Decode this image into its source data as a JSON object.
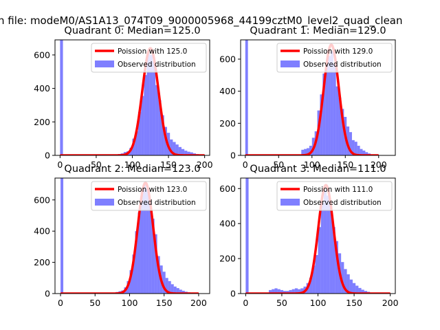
{
  "suptitle": "n file: modeM0/AS1A13_074T09_9000005968_44199cztM0_level2_quad_clean",
  "chart_data": [
    {
      "type": "bar",
      "title": "Quadrant 0: Median=125.0",
      "legend": [
        "Poission with 125.0",
        "Observed distribution"
      ],
      "legend_position": "top-right",
      "mean": 125.0,
      "peak": 640,
      "xlim": [
        -7,
        207
      ],
      "ylim": [
        0,
        690
      ],
      "xticks": [
        0,
        50,
        100,
        150,
        200
      ],
      "yticks": [
        0,
        200,
        400,
        600
      ],
      "series_color": "#0000ff",
      "fit_color": "#ff0000",
      "bins": [
        [
          0,
          4,
          690
        ],
        [
          80,
          4,
          8
        ],
        [
          84,
          4,
          12
        ],
        [
          88,
          4,
          20
        ],
        [
          92,
          4,
          25
        ],
        [
          96,
          4,
          45
        ],
        [
          100,
          4,
          100
        ],
        [
          104,
          4,
          145
        ],
        [
          108,
          4,
          260
        ],
        [
          112,
          4,
          355
        ],
        [
          116,
          4,
          480
        ],
        [
          120,
          4,
          610
        ],
        [
          124,
          4,
          600
        ],
        [
          128,
          4,
          560
        ],
        [
          132,
          4,
          420
        ],
        [
          136,
          4,
          330
        ],
        [
          140,
          4,
          240
        ],
        [
          144,
          4,
          170
        ],
        [
          148,
          4,
          135
        ],
        [
          152,
          4,
          95
        ],
        [
          156,
          4,
          80
        ],
        [
          160,
          4,
          65
        ],
        [
          164,
          4,
          50
        ],
        [
          168,
          4,
          38
        ],
        [
          172,
          4,
          28
        ],
        [
          176,
          4,
          22
        ],
        [
          180,
          4,
          18
        ],
        [
          184,
          4,
          12
        ],
        [
          188,
          4,
          8
        ],
        [
          192,
          4,
          5
        ],
        [
          196,
          4,
          3
        ]
      ]
    },
    {
      "type": "bar",
      "title": "Quadrant 1: Median=129.0",
      "legend": [
        "Poission with 129.0",
        "Observed distribution"
      ],
      "legend_position": "top-right",
      "mean": 129.0,
      "peak": 690,
      "xlim": [
        -7,
        225
      ],
      "ylim": [
        0,
        720
      ],
      "xticks": [
        0,
        50,
        100,
        150,
        200
      ],
      "yticks": [
        0,
        200,
        400,
        600
      ],
      "series_color": "#0000ff",
      "fit_color": "#ff0000",
      "bins": [
        [
          0,
          4,
          720
        ],
        [
          84,
          4,
          35
        ],
        [
          88,
          4,
          40
        ],
        [
          92,
          4,
          45
        ],
        [
          96,
          4,
          60
        ],
        [
          100,
          4,
          110
        ],
        [
          104,
          4,
          150
        ],
        [
          108,
          4,
          280
        ],
        [
          112,
          4,
          380
        ],
        [
          116,
          4,
          510
        ],
        [
          120,
          4,
          560
        ],
        [
          124,
          4,
          620
        ],
        [
          128,
          4,
          650
        ],
        [
          132,
          4,
          570
        ],
        [
          136,
          4,
          430
        ],
        [
          140,
          4,
          360
        ],
        [
          144,
          4,
          290
        ],
        [
          148,
          4,
          240
        ],
        [
          152,
          4,
          180
        ],
        [
          156,
          4,
          145
        ],
        [
          160,
          4,
          95
        ],
        [
          164,
          4,
          85
        ],
        [
          168,
          4,
          60
        ],
        [
          172,
          4,
          40
        ],
        [
          176,
          4,
          30
        ],
        [
          180,
          4,
          20
        ],
        [
          184,
          4,
          12
        ]
      ]
    },
    {
      "type": "bar",
      "title": "Quadrant 2: Median=123.0",
      "legend": [
        "Poission with 123.0",
        "Observed distribution"
      ],
      "legend_position": "top-right",
      "mean": 123.0,
      "peak": 710,
      "xlim": [
        -8,
        216
      ],
      "ylim": [
        0,
        740
      ],
      "xticks": [
        0,
        50,
        100,
        150,
        200
      ],
      "yticks": [
        0,
        200,
        400,
        600
      ],
      "series_color": "#0000ff",
      "fit_color": "#ff0000",
      "bins": [
        [
          0,
          4,
          740
        ],
        [
          80,
          4,
          10
        ],
        [
          84,
          4,
          15
        ],
        [
          88,
          4,
          20
        ],
        [
          92,
          4,
          40
        ],
        [
          96,
          4,
          80
        ],
        [
          100,
          4,
          150
        ],
        [
          104,
          4,
          250
        ],
        [
          108,
          4,
          400
        ],
        [
          112,
          4,
          520
        ],
        [
          116,
          4,
          650
        ],
        [
          120,
          4,
          700
        ],
        [
          124,
          4,
          670
        ],
        [
          128,
          4,
          600
        ],
        [
          132,
          4,
          480
        ],
        [
          136,
          4,
          380
        ],
        [
          140,
          4,
          240
        ],
        [
          144,
          4,
          180
        ],
        [
          148,
          4,
          140
        ],
        [
          152,
          4,
          100
        ],
        [
          156,
          4,
          80
        ],
        [
          160,
          4,
          60
        ],
        [
          164,
          4,
          45
        ],
        [
          168,
          4,
          35
        ],
        [
          172,
          4,
          25
        ],
        [
          176,
          4,
          18
        ],
        [
          180,
          4,
          12
        ],
        [
          184,
          4,
          8
        ]
      ]
    },
    {
      "type": "bar",
      "title": "Quadrant 3: Median=111.0",
      "legend": [
        "Poission with 111.0",
        "Observed distribution"
      ],
      "legend_position": "top-right",
      "mean": 111.0,
      "peak": 620,
      "xlim": [
        -7,
        207
      ],
      "ylim": [
        0,
        660
      ],
      "xticks": [
        0,
        50,
        100,
        150,
        200
      ],
      "yticks": [
        0,
        200,
        400,
        600
      ],
      "series_color": "#0000ff",
      "fit_color": "#ff0000",
      "bins": [
        [
          0,
          4,
          660
        ],
        [
          32,
          4,
          20
        ],
        [
          36,
          4,
          25
        ],
        [
          40,
          4,
          30
        ],
        [
          44,
          4,
          25
        ],
        [
          48,
          4,
          20
        ],
        [
          52,
          4,
          15
        ],
        [
          56,
          4,
          15
        ],
        [
          60,
          4,
          20
        ],
        [
          64,
          4,
          25
        ],
        [
          68,
          4,
          30
        ],
        [
          72,
          4,
          25
        ],
        [
          76,
          4,
          30
        ],
        [
          80,
          4,
          40
        ],
        [
          84,
          4,
          60
        ],
        [
          88,
          4,
          90
        ],
        [
          92,
          4,
          160
        ],
        [
          96,
          4,
          220
        ],
        [
          100,
          4,
          380
        ],
        [
          104,
          4,
          520
        ],
        [
          108,
          4,
          590
        ],
        [
          112,
          4,
          560
        ],
        [
          116,
          4,
          500
        ],
        [
          120,
          4,
          380
        ],
        [
          124,
          4,
          300
        ],
        [
          128,
          4,
          230
        ],
        [
          132,
          4,
          180
        ],
        [
          136,
          4,
          140
        ],
        [
          140,
          4,
          110
        ],
        [
          144,
          4,
          80
        ],
        [
          148,
          4,
          60
        ],
        [
          152,
          4,
          45
        ],
        [
          156,
          4,
          32
        ],
        [
          160,
          4,
          22
        ],
        [
          164,
          4,
          15
        ],
        [
          168,
          4,
          10
        ]
      ]
    }
  ]
}
